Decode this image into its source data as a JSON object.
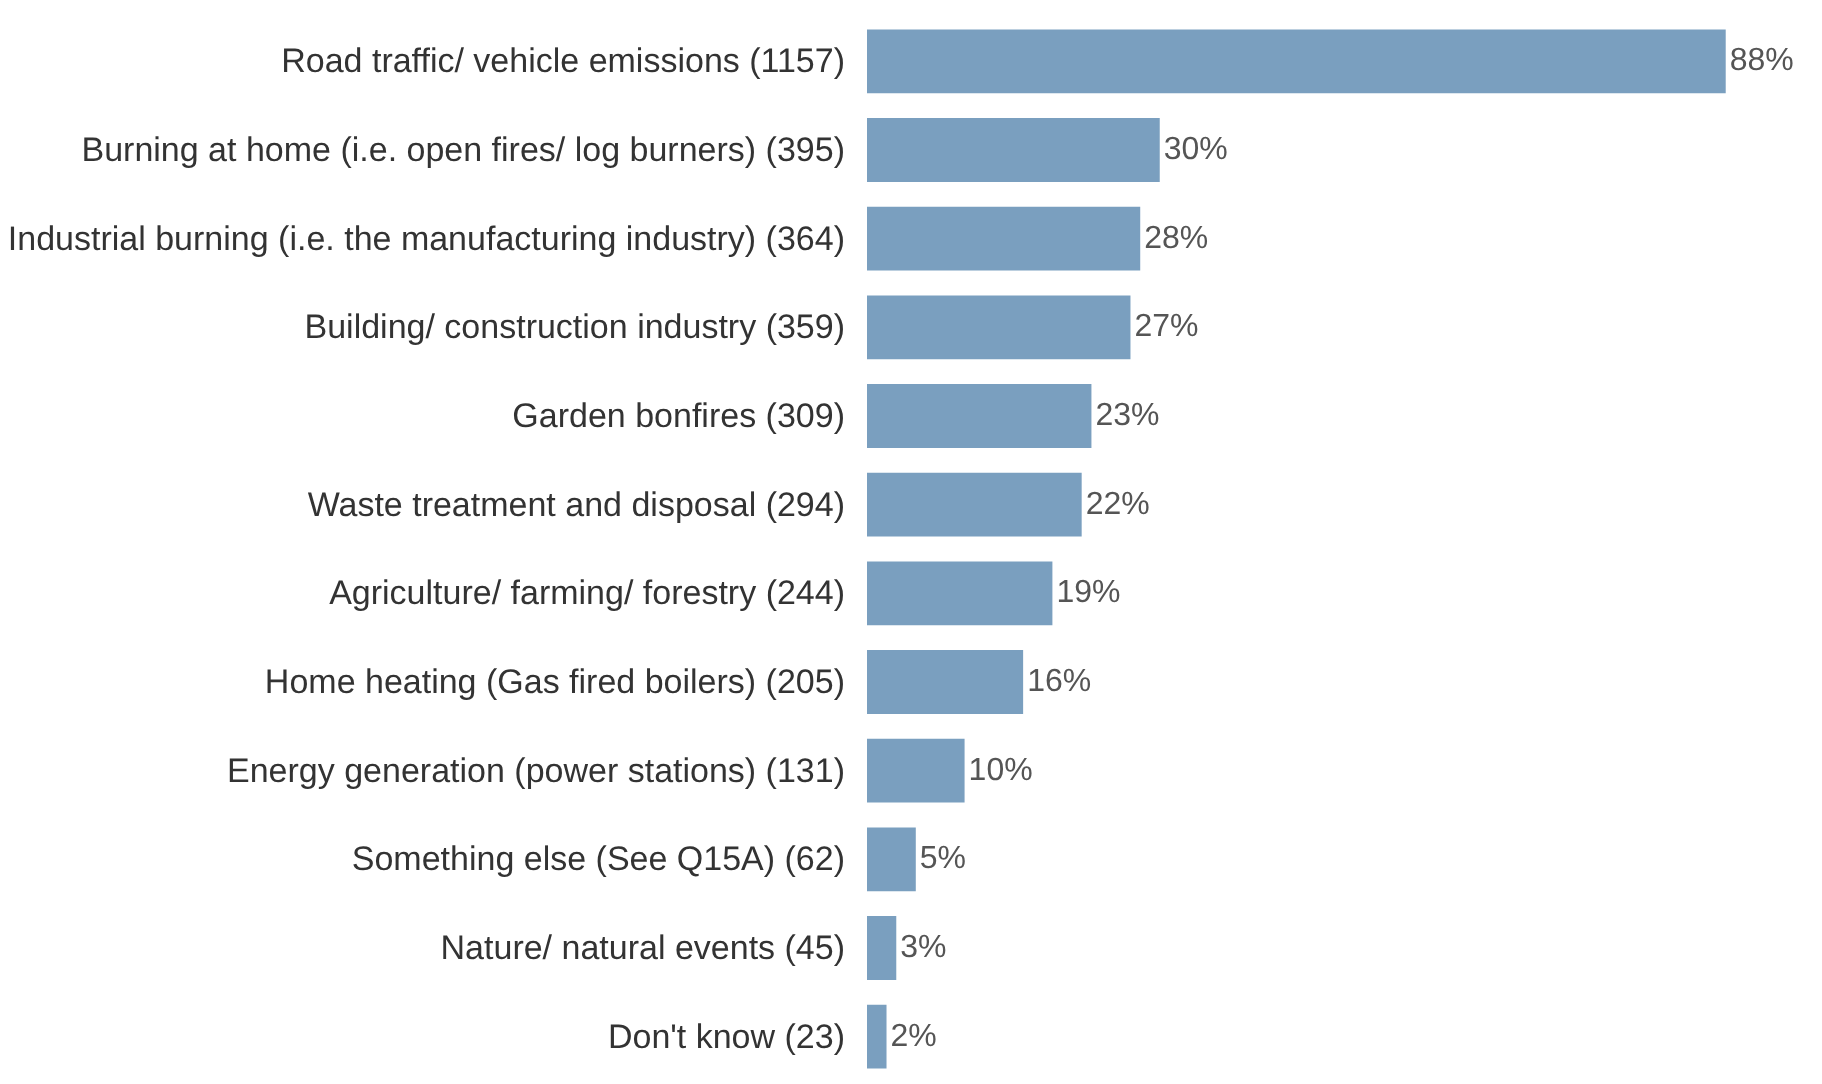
{
  "chart_data": {
    "type": "bar",
    "orientation": "horizontal",
    "categories": [
      "Road traffic/ vehicle emissions (1157)",
      "Burning at home (i.e. open fires/ log burners) (395)",
      "Industrial burning (i.e. the manufacturing industry) (364)",
      "Building/ construction industry (359)",
      "Garden bonfires (309)",
      "Waste treatment and disposal (294)",
      "Agriculture/ farming/ forestry (244)",
      "Home heating (Gas fired boilers) (205)",
      "Energy generation (power stations) (131)",
      "Something else (See Q15A) (62)",
      "Nature/ natural events (45)",
      "Don't know (23)"
    ],
    "values": [
      88,
      30,
      28,
      27,
      23,
      22,
      19,
      16,
      10,
      5,
      3,
      2
    ],
    "value_labels": [
      "88%",
      "30%",
      "28%",
      "27%",
      "23%",
      "22%",
      "19%",
      "16%",
      "10%",
      "5%",
      "3%",
      "2%"
    ],
    "color": "#7a9fbf",
    "grid": false
  }
}
